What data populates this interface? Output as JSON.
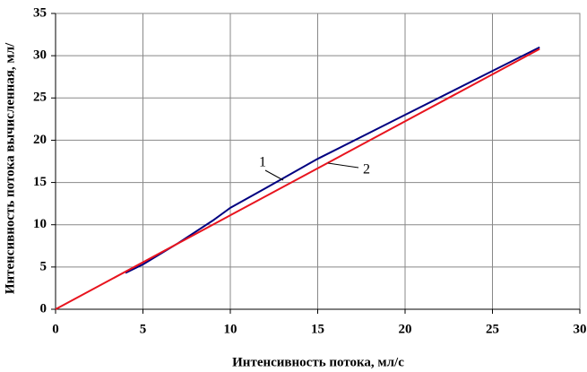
{
  "chart_data": {
    "type": "line",
    "xlabel": "Интенсивность потока, мл/с",
    "ylabel": "Интенсивность потока вычисленная, мл/",
    "xlim": [
      0,
      30
    ],
    "xticks": [
      0,
      5,
      10,
      15,
      20,
      25,
      30
    ],
    "ylim": [
      0,
      35
    ],
    "yticks": [
      0,
      5,
      10,
      15,
      20,
      25,
      30,
      35
    ],
    "grid": true,
    "series": [
      {
        "name": "1",
        "color": "#000080",
        "x": [
          4,
          5,
          7,
          9,
          10,
          12,
          15,
          20,
          25,
          27.7
        ],
        "values": [
          4.3,
          5.3,
          7.8,
          10.5,
          12,
          14.3,
          17.8,
          23,
          28.2,
          31
        ]
      },
      {
        "name": "2",
        "color": "#e8141e",
        "x": [
          0,
          27.7
        ],
        "values": [
          0,
          30.8
        ]
      }
    ]
  }
}
